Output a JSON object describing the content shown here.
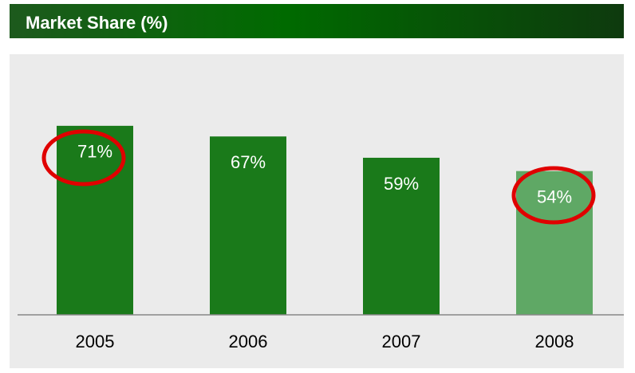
{
  "chart_data": {
    "type": "bar",
    "title": "Market Share (%)",
    "categories": [
      "2005",
      "2006",
      "2007",
      "2008"
    ],
    "values": [
      71,
      67,
      59,
      54
    ],
    "value_labels": [
      "71%",
      "67%",
      "59%",
      "54%"
    ],
    "colors": [
      "#1a7a1a",
      "#1a7a1a",
      "#1a7a1a",
      "#5fa865"
    ]
  }
}
